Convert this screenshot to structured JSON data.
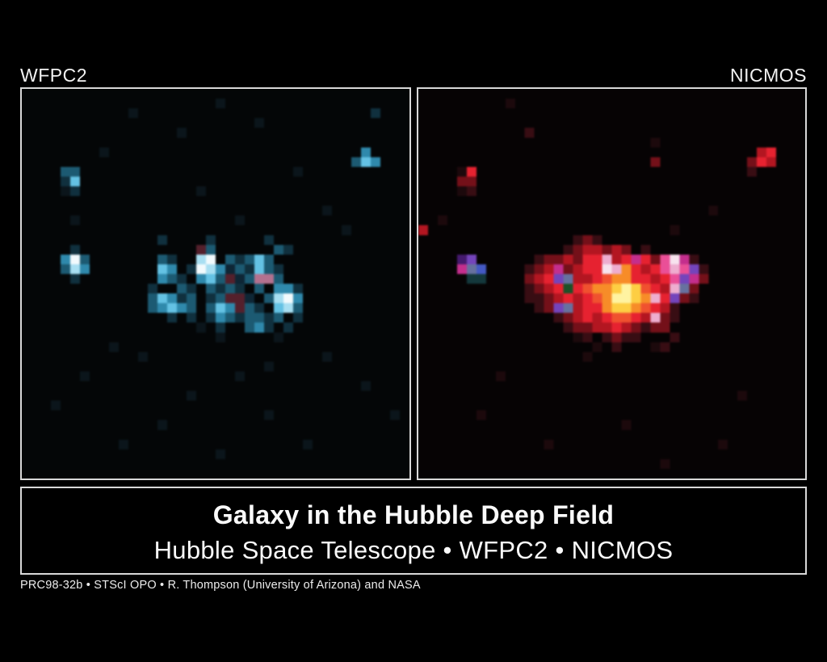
{
  "caption": {
    "title": "Galaxy in the Hubble Deep Field",
    "subtitle": "Hubble Space Telescope • WFPC2 • NICMOS",
    "credit": "PRC98-32b • STScI OPO • R. Thompson (University of Arizona) and NASA"
  },
  "colors": {
    "page_bg": "#000000",
    "panel_border": "#d8d8d8",
    "label_text": "#f2f2f2",
    "title_text": "#fafafa"
  },
  "panels": {
    "left": {
      "label": "WFPC2",
      "bg": "#040607",
      "palette": {
        "a": "#0b151b",
        "b": "#10303e",
        "c": "#1c5a72",
        "d": "#2f89ac",
        "e": "#64c2e4",
        "f": "#a8dff2",
        "w": "#f2fafd",
        "p": "#b4718f",
        "r": "#54202c",
        "g": "#0e2635"
      },
      "grid": [
        "........................................",
        "....................a...................",
        "...........a........................b...",
        "........................a...............",
        "................a.......................",
        "........................................",
        "........a..........................d....",
        "..................................ced...",
        "....cc......................a...........",
        "....be..................................",
        "....ab............a.....................",
        "........................................",
        "...............................a........",
        ".....a................a.................",
        ".................................a......",
        "..............b....b.....b..............",
        ".....b............rc......cb............",
        "....dwc.......cb..fw.cbcec..............",
        "....cfd.......ed.bwfdgcbecb.............",
        ".....b........dcb.decrgcppc.............",
        ".............b..cb.cbcb.c.ddb...........",
        ".............cedbc.bcrrg.cfwd...........",
        ".............cdedc.cedrcb.efc...........",
        "...............b.b.bdcbccbc.b...........",
        "..................a.b..cdb.b............",
        "....................a.....a.............",
        ".........a..............................",
        "............a..................a........",
        ".........................a..............",
        "......a...............a.................",
        "...................................a....",
        ".................a......................",
        "...a....................................",
        ".........................a............a.",
        "..............a.........................",
        "........................................",
        "..........a..................a..........",
        "....................a...................",
        "........................................",
        "........................................"
      ]
    },
    "right": {
      "label": "NICMOS",
      "bg": "#060304",
      "palette": {
        "a": "#1c090c",
        "b": "#380d13",
        "c": "#741019",
        "d": "#b31621",
        "e": "#e62230",
        "f": "#f0512f",
        "o": "#f78c28",
        "y": "#fdce43",
        "Y": "#fff3a1",
        "w": "#f7e3ee",
        "p": "#ea4f97",
        "P": "#eeadcf",
        "m": "#c42e8d",
        "v": "#7444bb",
        "V": "#451a6e",
        "u": "#4459c4",
        "s": "#67719f",
        "t": "#14383c",
        "g": "#1d5128"
      },
      "grid": [
        "........................................",
        ".........a..............................",
        "........................................",
        "........................................",
        "...........b............................",
        "........................a...............",
        "...................................de...",
        "........................c.........ced...",
        "....ae............................b.....",
        "....cc..................................",
        "....ab..................................",
        "........................................",
        "..............................a.........",
        "..a.....................................",
        "d.........................a.............",
        "................bcb.....................",
        "...............bcddcdc.b................",
        "....Vv......bccdceePdemecpwmb...........",
        "....msu....bcdmcdeewPoedepPpvb..........",
        ".....tt....cdevsddefooeedepvmc..........",
        "...........bcdegefooyYyfedPsc...........",
        "...........bbcdedefoYYyoPevcb...........",
        "............bcvsdeeoyyofedb.............",
        "..............bcdedeffedPcb.............",
        "...............bccddedcbcc..............",
        "................ab.bcbb...b.............",
        "..................a.b...ab..............",
        ".................a......................",
        "........................................",
        "........a...............................",
        "........................................",
        ".................................a......",
        "........................................",
        "......a.................................",
        ".....................a..................",
        "........................................",
        ".............a.................a........",
        "........................................",
        ".........................a..............",
        "........................................"
      ]
    }
  }
}
